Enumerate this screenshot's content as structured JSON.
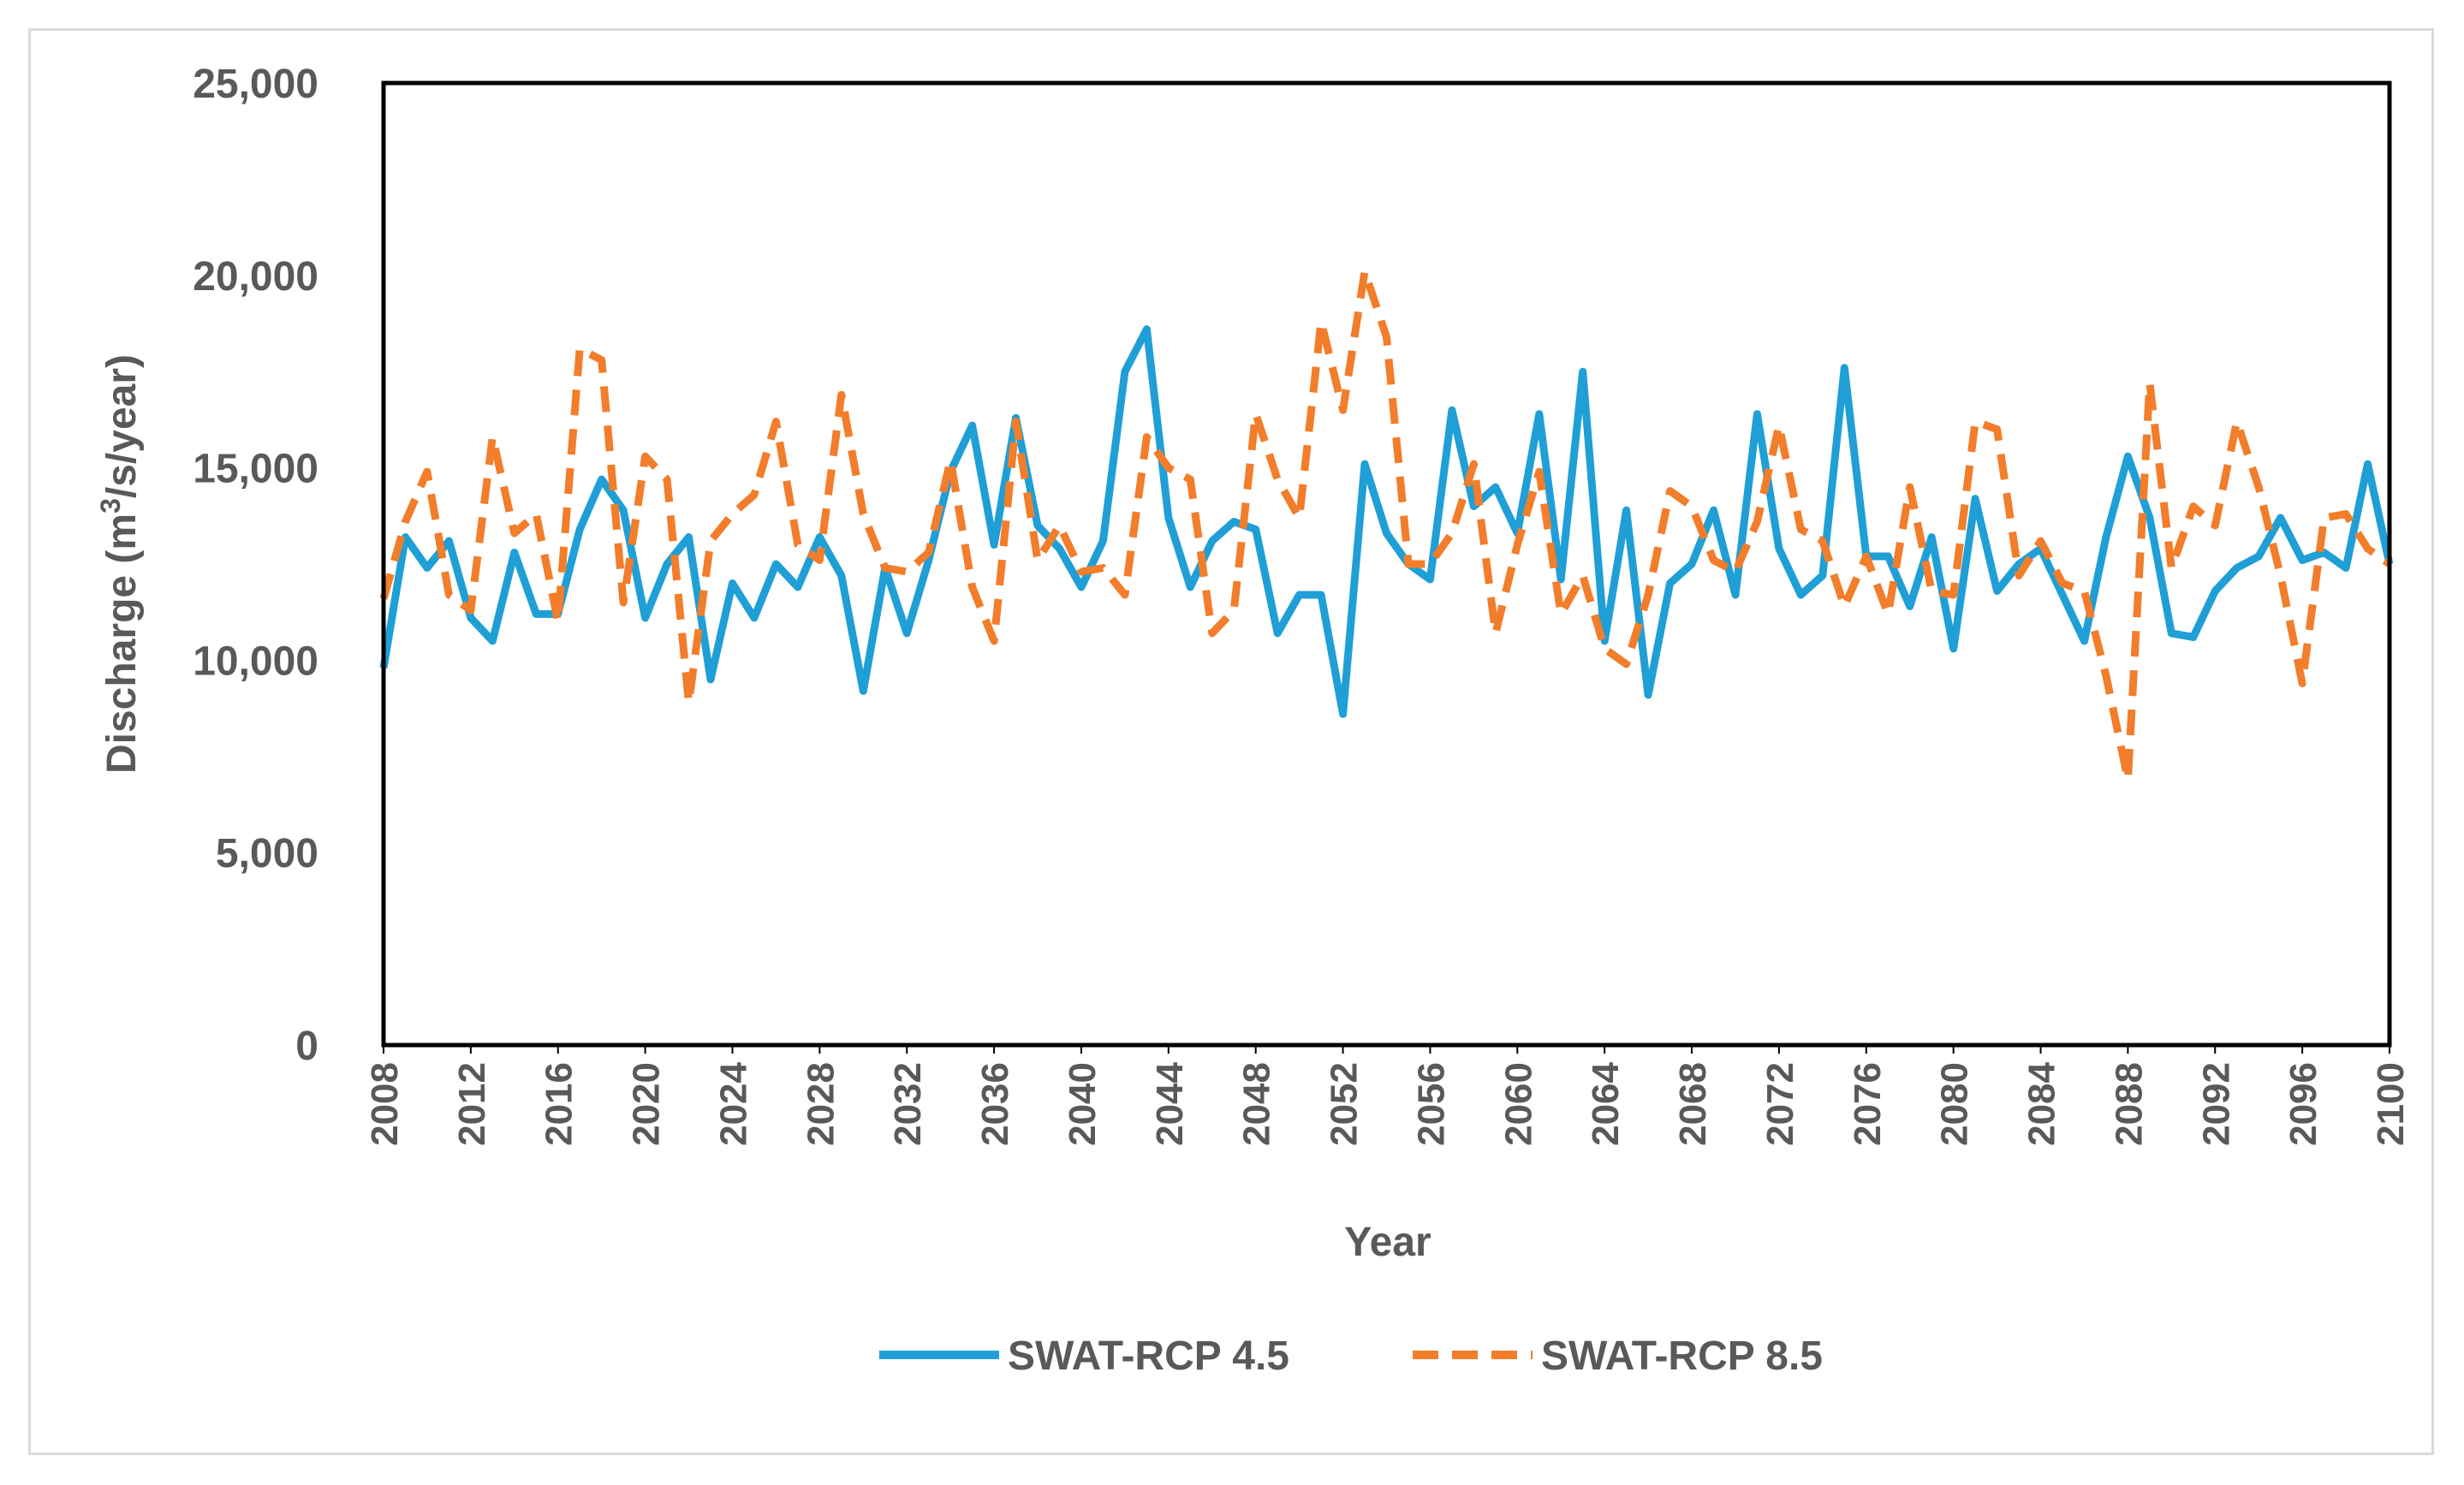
{
  "chart_data": {
    "type": "line",
    "title": "",
    "xlabel": "Year",
    "ylabel_main": "Discharge (m",
    "ylabel_sup": "3",
    "ylabel_tail": "/s/year)",
    "ylim": [
      0,
      25000
    ],
    "xlim": [
      2008,
      2100
    ],
    "y_ticks": [
      0,
      5000,
      10000,
      15000,
      20000,
      25000
    ],
    "y_tick_labels": [
      "0",
      "5,000",
      "10,000",
      "15,000",
      "20,000",
      "25,000"
    ],
    "x_ticks": [
      2008,
      2012,
      2016,
      2020,
      2024,
      2028,
      2032,
      2036,
      2040,
      2044,
      2048,
      2052,
      2056,
      2060,
      2064,
      2068,
      2072,
      2076,
      2080,
      2084,
      2088,
      2092,
      2096,
      2100
    ],
    "x_tick_labels": [
      "2008",
      "2012",
      "2016",
      "2020",
      "2024",
      "2028",
      "2032",
      "2036",
      "2040",
      "2044",
      "2048",
      "2052",
      "2056",
      "2060",
      "2064",
      "2068",
      "2072",
      "2076",
      "2080",
      "2084",
      "2088",
      "2092",
      "2096",
      "2100"
    ],
    "legend_position": "bottom",
    "grid": false,
    "x": [
      2008,
      2009,
      2010,
      2011,
      2012,
      2013,
      2014,
      2015,
      2016,
      2017,
      2018,
      2019,
      2020,
      2021,
      2022,
      2023,
      2024,
      2025,
      2026,
      2027,
      2028,
      2029,
      2030,
      2031,
      2032,
      2033,
      2034,
      2035,
      2036,
      2037,
      2038,
      2039,
      2040,
      2041,
      2042,
      2043,
      2044,
      2045,
      2046,
      2047,
      2048,
      2049,
      2050,
      2051,
      2052,
      2053,
      2054,
      2055,
      2056,
      2057,
      2058,
      2059,
      2060,
      2061,
      2062,
      2063,
      2064,
      2065,
      2066,
      2067,
      2068,
      2069,
      2070,
      2071,
      2072,
      2073,
      2074,
      2075,
      2076,
      2077,
      2078,
      2079,
      2080,
      2081,
      2082,
      2083,
      2084,
      2085,
      2086,
      2087,
      2088,
      2089,
      2090,
      2091,
      2092,
      2093,
      2094,
      2095,
      2096,
      2097,
      2098,
      2099,
      2100
    ],
    "series": [
      {
        "name": "SWAT-RCP 4.5",
        "color": "#1f9fd6",
        "dash": "solid",
        "values": [
          9800,
          13200,
          12400,
          13100,
          11100,
          10500,
          12800,
          11200,
          11200,
          13400,
          14700,
          13900,
          11100,
          12500,
          13200,
          9500,
          12000,
          11100,
          12500,
          11900,
          13200,
          12200,
          9200,
          12400,
          10700,
          12600,
          14900,
          16100,
          13000,
          16300,
          13500,
          12900,
          11900,
          13100,
          17500,
          18600,
          13700,
          11900,
          13100,
          13600,
          13400,
          10700,
          11700,
          11700,
          8600,
          15100,
          13300,
          12500,
          12100,
          16500,
          14000,
          14500,
          13300,
          16400,
          12100,
          17500,
          10500,
          13900,
          9100,
          12000,
          12500,
          13900,
          11700,
          16400,
          12900,
          11700,
          12200,
          17600,
          12700,
          12700,
          11400,
          13200,
          10300,
          14200,
          11800,
          12500,
          12900,
          11700,
          10500,
          13200,
          15300,
          13700,
          10700,
          10600,
          11800,
          12400,
          12700,
          13700,
          12600,
          12800,
          12400,
          15100,
          12500
        ]
      },
      {
        "name": "SWAT-RCP 8.5",
        "color": "#f27d2a",
        "dash": "dashed",
        "values": [
          11600,
          13600,
          14900,
          11700,
          11300,
          15800,
          13300,
          13800,
          11000,
          18100,
          17800,
          11500,
          15300,
          14700,
          8900,
          13100,
          13800,
          14300,
          16200,
          13000,
          12600,
          16900,
          13800,
          12400,
          12300,
          12800,
          15200,
          11900,
          10500,
          16200,
          12600,
          13500,
          12300,
          12400,
          11700,
          15800,
          15000,
          14700,
          10700,
          11300,
          16400,
          14700,
          13700,
          18800,
          16500,
          20100,
          18400,
          12500,
          12500,
          13300,
          15100,
          10700,
          13000,
          14900,
          11200,
          12200,
          10300,
          9900,
          11700,
          14400,
          14000,
          12600,
          12300,
          13600,
          16100,
          13400,
          13100,
          11400,
          12700,
          11200,
          14500,
          11800,
          11700,
          16200,
          16000,
          12200,
          13100,
          12000,
          11800,
          9600,
          6900,
          17200,
          12400,
          14000,
          13500,
          16200,
          14500,
          12200,
          9400,
          13700,
          13800,
          12900,
          12500
        ]
      }
    ]
  }
}
